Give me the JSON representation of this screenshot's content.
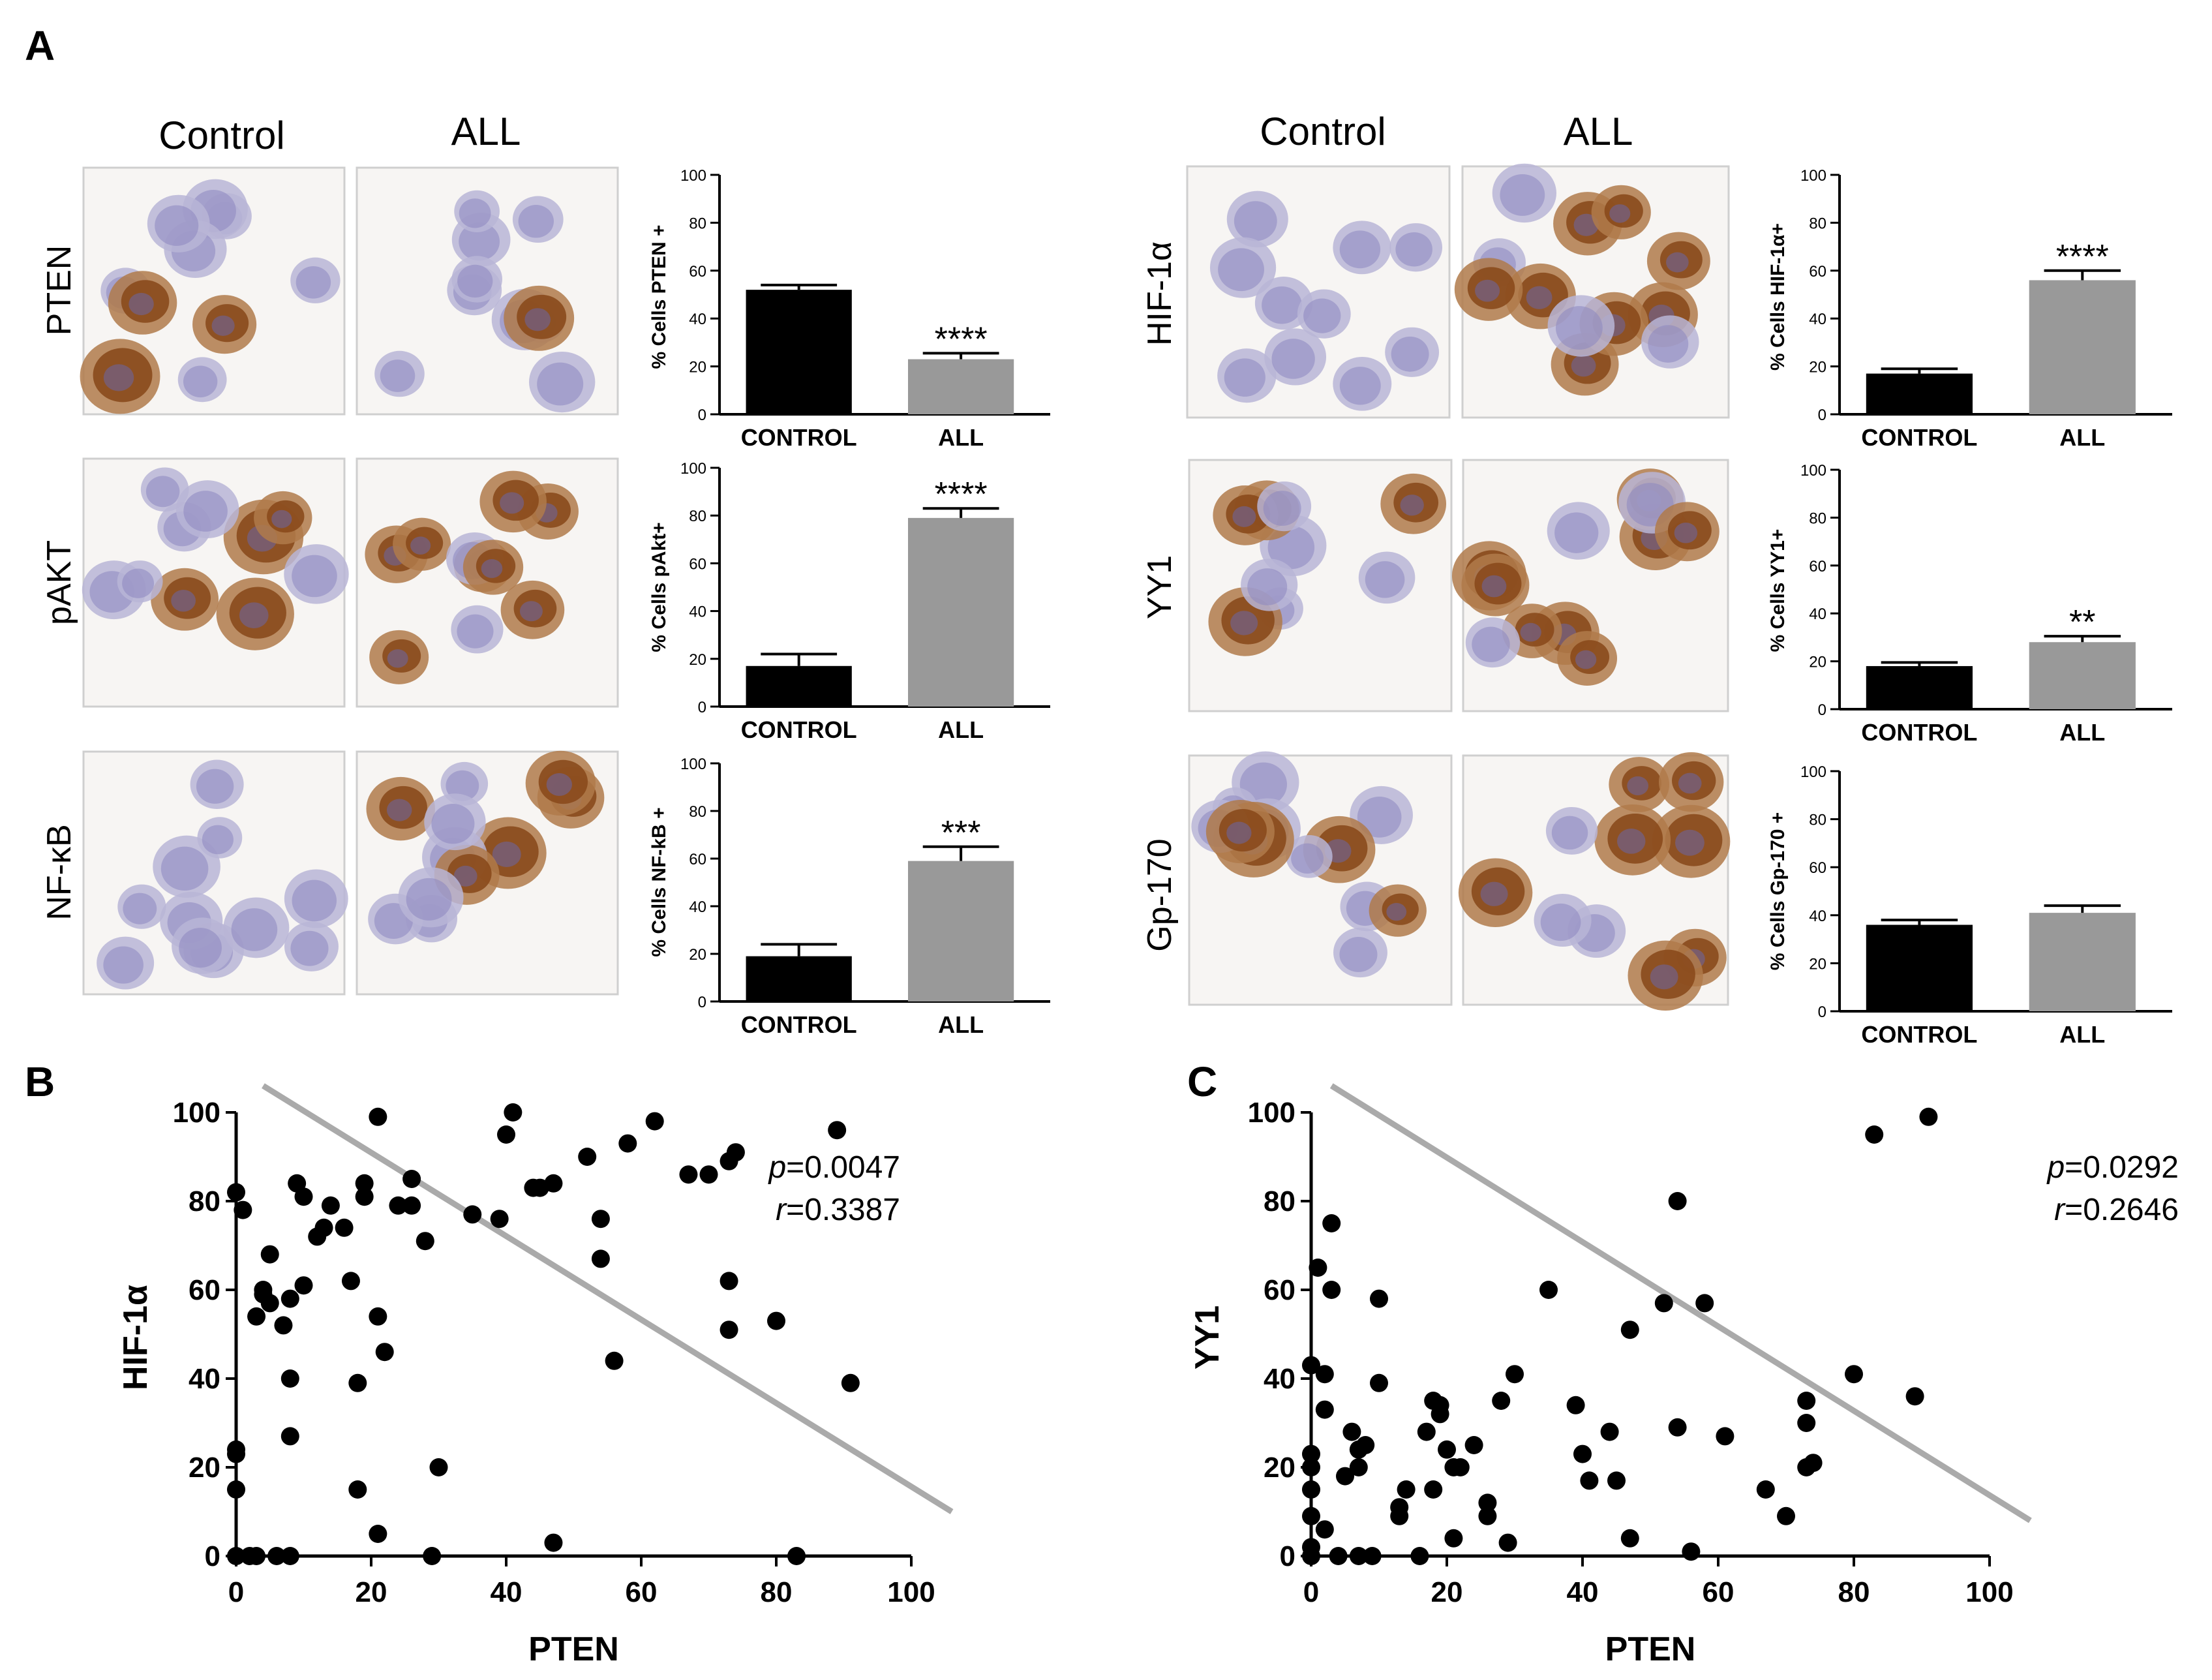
{
  "panel_labels": {
    "a": "A",
    "b": "B",
    "c": "C"
  },
  "column_headers": {
    "left": [
      "Control",
      "ALL"
    ],
    "right": [
      "Control",
      "ALL"
    ]
  },
  "stain_labels": [
    "PTEN",
    "pAKT",
    "NF-κB",
    "HIF-1α",
    "YY1",
    "Gp-170"
  ],
  "colors": {
    "control_bar": "#000000",
    "all_bar": "#999999",
    "regression_line": "#aaaaaa",
    "points": "#000000",
    "hematoxylin": "#8c86c0",
    "dab": "#8a4a1c"
  },
  "chart_data": [
    {
      "type": "bar",
      "id": "pten",
      "ylabel": "% Cells PTEN +",
      "categories": [
        "CONTROL",
        "ALL"
      ],
      "values": [
        52,
        23
      ],
      "errors": [
        2,
        2.5
      ],
      "ylim": [
        0,
        100
      ],
      "yticks": [
        0,
        20,
        40,
        60,
        80,
        100
      ],
      "significance": "****",
      "significance_on": 1
    },
    {
      "type": "bar",
      "id": "pakt",
      "ylabel": "% Cells pAkt+",
      "categories": [
        "CONTROL",
        "ALL"
      ],
      "values": [
        17,
        79
      ],
      "errors": [
        5,
        4
      ],
      "ylim": [
        0,
        100
      ],
      "yticks": [
        0,
        20,
        40,
        60,
        80,
        100
      ],
      "significance": "****",
      "significance_on": 1
    },
    {
      "type": "bar",
      "id": "nfkb",
      "ylabel": "% Cells NF-kB +",
      "categories": [
        "CONTROL",
        "ALL"
      ],
      "values": [
        19,
        59
      ],
      "errors": [
        5,
        6
      ],
      "ylim": [
        0,
        100
      ],
      "yticks": [
        0,
        20,
        40,
        60,
        80,
        100
      ],
      "significance": "***",
      "significance_on": 1
    },
    {
      "type": "bar",
      "id": "hif",
      "ylabel": "% Cells HIF-1α+",
      "categories": [
        "CONTROL",
        "ALL"
      ],
      "values": [
        17,
        56
      ],
      "errors": [
        2,
        4
      ],
      "ylim": [
        0,
        100
      ],
      "yticks": [
        0,
        20,
        40,
        60,
        80,
        100
      ],
      "significance": "****",
      "significance_on": 1
    },
    {
      "type": "bar",
      "id": "yy1",
      "ylabel": "% Cells YY1+",
      "categories": [
        "CONTROL",
        "ALL"
      ],
      "values": [
        18,
        28
      ],
      "errors": [
        1.5,
        2.5
      ],
      "ylim": [
        0,
        100
      ],
      "yticks": [
        0,
        20,
        40,
        60,
        80,
        100
      ],
      "significance": "**",
      "significance_on": 1
    },
    {
      "type": "bar",
      "id": "gp170",
      "ylabel": "% Cells Gp-170 +",
      "categories": [
        "CONTROL",
        "ALL"
      ],
      "values": [
        36,
        41
      ],
      "errors": [
        2,
        3
      ],
      "ylim": [
        0,
        100
      ],
      "yticks": [
        0,
        20,
        40,
        60,
        80,
        100
      ],
      "significance": "",
      "significance_on": 1
    },
    {
      "type": "scatter",
      "id": "b",
      "xlabel": "PTEN",
      "ylabel": "HIF-1α",
      "xlim": [
        0,
        100
      ],
      "ylim": [
        0,
        100
      ],
      "xticks": [
        0,
        20,
        40,
        60,
        80,
        100
      ],
      "yticks": [
        0,
        20,
        40,
        60,
        80,
        100
      ],
      "stats": {
        "p_label": "p",
        "p_value": "=0.0047",
        "r_label": "r",
        "r_value": "=0.3387"
      },
      "regression": {
        "x": [
          4,
          106
        ],
        "y": [
          106,
          10
        ]
      },
      "points": [
        [
          0,
          82
        ],
        [
          0,
          23
        ],
        [
          0,
          24
        ],
        [
          0,
          15
        ],
        [
          0,
          0
        ],
        [
          1,
          78
        ],
        [
          2,
          0
        ],
        [
          3,
          54
        ],
        [
          3,
          0
        ],
        [
          4,
          60
        ],
        [
          4,
          59
        ],
        [
          5,
          68
        ],
        [
          5,
          57
        ],
        [
          6,
          0
        ],
        [
          7,
          52
        ],
        [
          8,
          40
        ],
        [
          8,
          27
        ],
        [
          8,
          0
        ],
        [
          8,
          58
        ],
        [
          9,
          84
        ],
        [
          10,
          61
        ],
        [
          10,
          81
        ],
        [
          12,
          72
        ],
        [
          13,
          74
        ],
        [
          14,
          79
        ],
        [
          16,
          74
        ],
        [
          17,
          62
        ],
        [
          18,
          39
        ],
        [
          18,
          15
        ],
        [
          19,
          81
        ],
        [
          19,
          84
        ],
        [
          21,
          54
        ],
        [
          21,
          99
        ],
        [
          21,
          5
        ],
        [
          22,
          46
        ],
        [
          24,
          79
        ],
        [
          26,
          79
        ],
        [
          26,
          85
        ],
        [
          28,
          71
        ],
        [
          29,
          0
        ],
        [
          30,
          20
        ],
        [
          35,
          77
        ],
        [
          39,
          76
        ],
        [
          40,
          95
        ],
        [
          41,
          100
        ],
        [
          44,
          83
        ],
        [
          45,
          83
        ],
        [
          47,
          84
        ],
        [
          47,
          3
        ],
        [
          52,
          90
        ],
        [
          54,
          76
        ],
        [
          54,
          67
        ],
        [
          56,
          44
        ],
        [
          58,
          93
        ],
        [
          62,
          98
        ],
        [
          67,
          86
        ],
        [
          70,
          86
        ],
        [
          73,
          89
        ],
        [
          73,
          62
        ],
        [
          73,
          51
        ],
        [
          74,
          91
        ],
        [
          80,
          53
        ],
        [
          83,
          0
        ],
        [
          89,
          96
        ],
        [
          91,
          39
        ]
      ]
    },
    {
      "type": "scatter",
      "id": "c",
      "xlabel": "PTEN",
      "ylabel": "YY1",
      "xlim": [
        0,
        100
      ],
      "ylim": [
        0,
        100
      ],
      "xticks": [
        0,
        20,
        40,
        60,
        80,
        100
      ],
      "yticks": [
        0,
        20,
        40,
        60,
        80,
        100
      ],
      "stats": {
        "p_label": "p",
        "p_value": "=0.0292",
        "r_label": "r",
        "r_value": "=0.2646"
      },
      "regression": {
        "x": [
          3,
          106
        ],
        "y": [
          106,
          8
        ]
      },
      "points": [
        [
          0,
          43
        ],
        [
          0,
          23
        ],
        [
          0,
          20
        ],
        [
          0,
          15
        ],
        [
          0,
          9
        ],
        [
          0,
          2
        ],
        [
          0,
          0
        ],
        [
          1,
          65
        ],
        [
          2,
          41
        ],
        [
          2,
          33
        ],
        [
          2,
          6
        ],
        [
          3,
          75
        ],
        [
          3,
          60
        ],
        [
          4,
          0
        ],
        [
          5,
          18
        ],
        [
          6,
          28
        ],
        [
          7,
          24
        ],
        [
          7,
          20
        ],
        [
          7,
          0
        ],
        [
          8,
          25
        ],
        [
          9,
          0
        ],
        [
          10,
          58
        ],
        [
          10,
          39
        ],
        [
          13,
          11
        ],
        [
          13,
          9
        ],
        [
          14,
          15
        ],
        [
          16,
          0
        ],
        [
          17,
          28
        ],
        [
          18,
          35
        ],
        [
          18,
          15
        ],
        [
          19,
          34
        ],
        [
          19,
          32
        ],
        [
          20,
          24
        ],
        [
          21,
          20
        ],
        [
          21,
          4
        ],
        [
          22,
          20
        ],
        [
          24,
          25
        ],
        [
          26,
          12
        ],
        [
          26,
          9
        ],
        [
          28,
          35
        ],
        [
          29,
          3
        ],
        [
          30,
          41
        ],
        [
          35,
          60
        ],
        [
          39,
          34
        ],
        [
          40,
          23
        ],
        [
          41,
          17
        ],
        [
          44,
          28
        ],
        [
          45,
          17
        ],
        [
          47,
          51
        ],
        [
          47,
          4
        ],
        [
          52,
          57
        ],
        [
          54,
          80
        ],
        [
          54,
          29
        ],
        [
          56,
          1
        ],
        [
          58,
          57
        ],
        [
          61,
          27
        ],
        [
          67,
          15
        ],
        [
          70,
          9
        ],
        [
          73,
          35
        ],
        [
          73,
          30
        ],
        [
          73,
          20
        ],
        [
          74,
          21
        ],
        [
          80,
          41
        ],
        [
          89,
          36
        ],
        [
          91,
          99
        ],
        [
          83,
          95
        ]
      ]
    }
  ]
}
